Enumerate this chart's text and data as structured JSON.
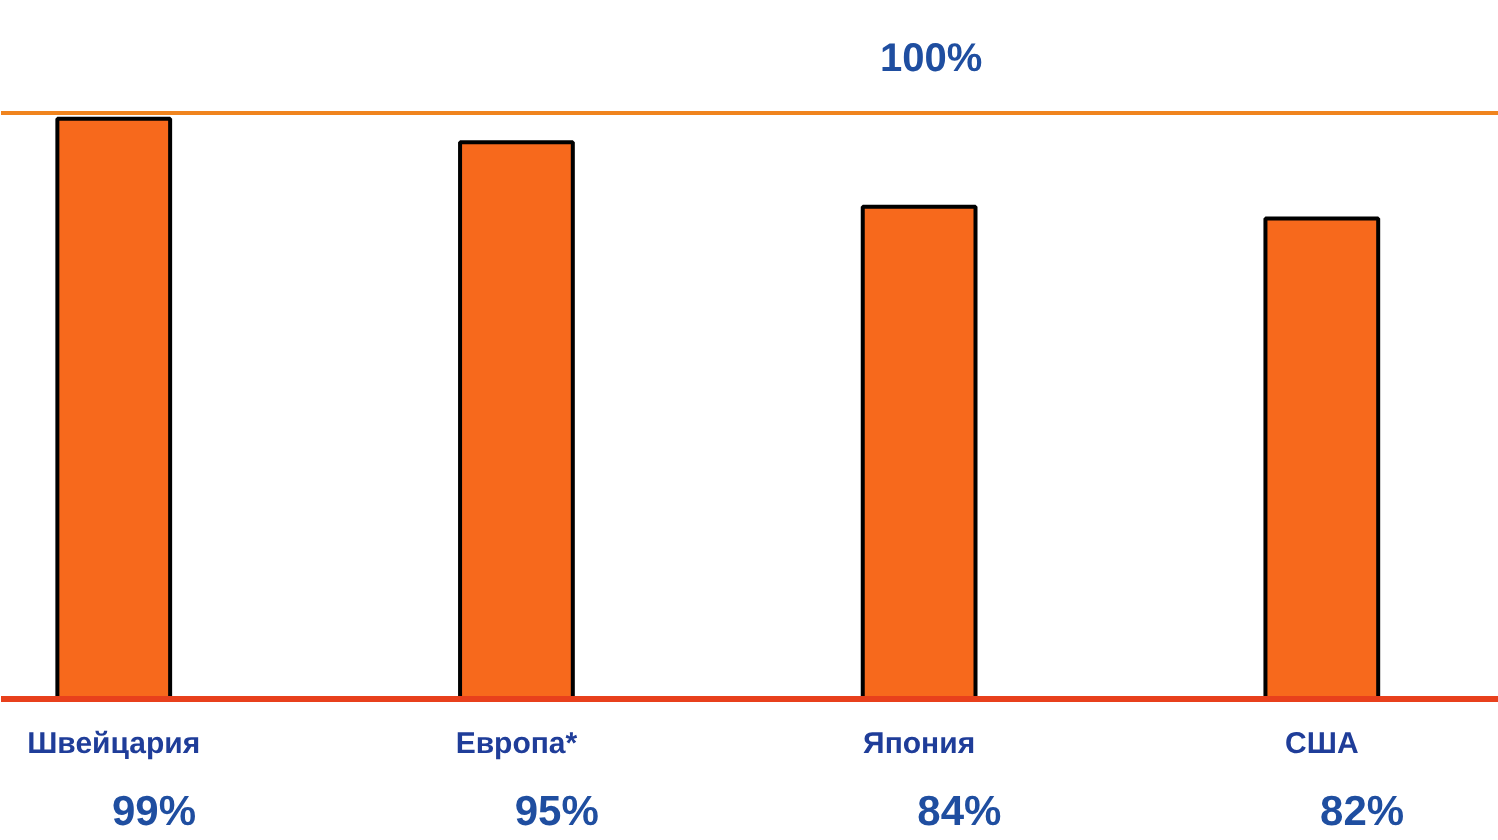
{
  "chart_data": {
    "type": "bar",
    "categories": [
      "Швейцария",
      "Европа*",
      "Япония",
      "США"
    ],
    "values": [
      99,
      95,
      84,
      82
    ],
    "value_labels": [
      "99%",
      "95%",
      "84%",
      "82%"
    ],
    "color": "#f7691c",
    "ylim": [
      0,
      100
    ],
    "tick_labels": "x",
    "ref_lines": [
      {
        "axis": "y",
        "value": 100,
        "label": "100%",
        "color": "#f0841e"
      }
    ]
  }
}
